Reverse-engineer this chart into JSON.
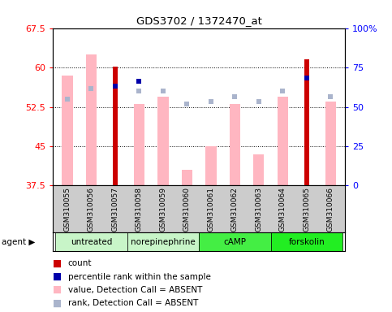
{
  "title": "GDS3702 / 1372470_at",
  "samples": [
    "GSM310055",
    "GSM310056",
    "GSM310057",
    "GSM310058",
    "GSM310059",
    "GSM310060",
    "GSM310061",
    "GSM310062",
    "GSM310063",
    "GSM310064",
    "GSM310065",
    "GSM310066"
  ],
  "value_bars": [
    58.5,
    62.5,
    null,
    53.0,
    54.5,
    40.5,
    45.0,
    53.0,
    43.5,
    54.5,
    null,
    53.5
  ],
  "count_bars": [
    null,
    null,
    60.2,
    null,
    null,
    null,
    null,
    null,
    null,
    null,
    61.5,
    null
  ],
  "rank_absent": [
    54.0,
    56.0,
    56.5,
    55.5,
    55.5,
    53.0,
    53.5,
    54.5,
    53.5,
    55.5,
    58.0,
    54.5
  ],
  "rank_dark": [
    null,
    null,
    56.5,
    57.3,
    null,
    null,
    null,
    null,
    null,
    null,
    58.0,
    null
  ],
  "agent_groups": [
    {
      "label": "untreated",
      "start": 0,
      "end": 2,
      "color": "#c8f5c8"
    },
    {
      "label": "norepinephrine",
      "start": 3,
      "end": 5,
      "color": "#c8f5c8"
    },
    {
      "label": "cAMP",
      "start": 6,
      "end": 8,
      "color": "#44ee44"
    },
    {
      "label": "forskolin",
      "start": 9,
      "end": 11,
      "color": "#22ee22"
    }
  ],
  "ylim_left": [
    37.5,
    67.5
  ],
  "ylim_right": [
    0,
    100
  ],
  "yticks_left": [
    37.5,
    45.0,
    52.5,
    60.0,
    67.5
  ],
  "yticks_right": [
    0,
    25,
    50,
    75,
    100
  ],
  "color_count": "#cc0000",
  "color_rank_dark": "#0000aa",
  "color_value_absent": "#ffb6c1",
  "color_rank_absent": "#aab4cc",
  "background_xticklabels": "#cccccc",
  "legend_items": [
    {
      "color": "#cc0000",
      "label": "count"
    },
    {
      "color": "#0000aa",
      "label": "percentile rank within the sample"
    },
    {
      "color": "#ffb6c1",
      "label": "value, Detection Call = ABSENT"
    },
    {
      "color": "#aab4cc",
      "label": "rank, Detection Call = ABSENT"
    }
  ]
}
